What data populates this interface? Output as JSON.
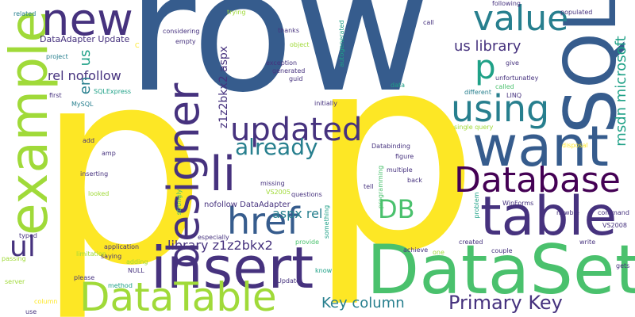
{
  "palette": {
    "yellow": "#fde725",
    "lime": "#a0da39",
    "green": "#4ac16d",
    "teal": "#1fa187",
    "cyan": "#277f8e",
    "blue": "#365c8d",
    "indigo": "#46327e",
    "purple": "#440154"
  },
  "words": [
    {
      "text": "row",
      "color": "blue"
    },
    {
      "text": "p",
      "color": "yellow"
    },
    {
      "text": "p",
      "color": "yellow"
    },
    {
      "text": "SQL",
      "color": "blue"
    },
    {
      "text": "DataSet",
      "color": "green"
    },
    {
      "text": "insert",
      "color": "indigo"
    },
    {
      "text": "example",
      "color": "lime"
    },
    {
      "text": "want",
      "color": "blue"
    },
    {
      "text": "table",
      "color": "indigo"
    },
    {
      "text": "DataTable",
      "color": "lime"
    },
    {
      "text": "designer",
      "color": "indigo"
    },
    {
      "text": "Database",
      "color": "purple"
    },
    {
      "text": "using",
      "color": "cyan"
    },
    {
      "text": "new",
      "color": "indigo"
    },
    {
      "text": "value",
      "color": "cyan"
    },
    {
      "text": "li",
      "color": "indigo"
    },
    {
      "text": "href",
      "color": "blue"
    },
    {
      "text": "updated",
      "color": "indigo"
    },
    {
      "text": "p",
      "color": "teal"
    },
    {
      "text": "already",
      "color": "cyan"
    },
    {
      "text": "DB",
      "color": "green"
    },
    {
      "text": "Primary Key",
      "color": "indigo"
    },
    {
      "text": "Key column",
      "color": "cyan"
    },
    {
      "text": "ul",
      "color": "indigo"
    },
    {
      "text": "us library",
      "color": "indigo"
    },
    {
      "text": "msdn microsoft",
      "color": "teal"
    },
    {
      "text": "rel nofollow",
      "color": "indigo"
    },
    {
      "text": "aspx rel",
      "color": "cyan"
    },
    {
      "text": "library z1z2bkx2",
      "color": "indigo"
    },
    {
      "text": "en",
      "color": "cyan"
    },
    {
      "text": "us",
      "color": "teal"
    },
    {
      "text": "z1z2bkx2 aspx",
      "color": "indigo"
    },
    {
      "text": "DataAdapter Update",
      "color": "indigo"
    },
    {
      "text": "nofollow DataAdapter",
      "color": "indigo"
    },
    {
      "text": "related",
      "color": "cyan"
    },
    {
      "text": "project",
      "color": "cyan"
    },
    {
      "text": "first",
      "color": "indigo"
    },
    {
      "text": "MySQL",
      "color": "cyan"
    },
    {
      "text": "SQLExpress",
      "color": "teal"
    },
    {
      "text": "considering",
      "color": "indigo"
    },
    {
      "text": "empty",
      "color": "indigo"
    },
    {
      "text": "trying",
      "color": "lime"
    },
    {
      "text": "thanks",
      "color": "indigo"
    },
    {
      "text": "object",
      "color": "lime"
    },
    {
      "text": "exception",
      "color": "indigo"
    },
    {
      "text": "generated",
      "color": "indigo"
    },
    {
      "text": "guid",
      "color": "indigo"
    },
    {
      "text": "initially",
      "color": "indigo"
    },
    {
      "text": "autogenerated",
      "color": "teal"
    },
    {
      "text": "call",
      "color": "indigo"
    },
    {
      "text": "called",
      "color": "green"
    },
    {
      "text": "data",
      "color": "teal"
    },
    {
      "text": "following",
      "color": "indigo"
    },
    {
      "text": "populated",
      "color": "indigo"
    },
    {
      "text": "give",
      "color": "indigo"
    },
    {
      "text": "unfortunatley",
      "color": "indigo"
    },
    {
      "text": "different",
      "color": "cyan"
    },
    {
      "text": "LINQ",
      "color": "indigo"
    },
    {
      "text": "single query",
      "color": "lime"
    },
    {
      "text": "disposal",
      "color": "yellow"
    },
    {
      "text": "newbie",
      "color": "indigo"
    },
    {
      "text": "command",
      "color": "indigo"
    },
    {
      "text": "VS2008",
      "color": "indigo"
    },
    {
      "text": "WinForms",
      "color": "indigo"
    },
    {
      "text": "problem",
      "color": "teal"
    },
    {
      "text": "add",
      "color": "indigo"
    },
    {
      "text": "amp",
      "color": "indigo"
    },
    {
      "text": "Databinding",
      "color": "indigo"
    },
    {
      "text": "figure",
      "color": "indigo"
    },
    {
      "text": "multiple",
      "color": "indigo"
    },
    {
      "text": "back",
      "color": "indigo"
    },
    {
      "text": "programming",
      "color": "green"
    },
    {
      "text": "tell",
      "color": "indigo"
    },
    {
      "text": "missing",
      "color": "indigo"
    },
    {
      "text": "inserting",
      "color": "indigo"
    },
    {
      "text": "looked",
      "color": "lime"
    },
    {
      "text": "VS2005",
      "color": "lime"
    },
    {
      "text": "questions",
      "color": "indigo"
    },
    {
      "text": "strongly",
      "color": "green"
    },
    {
      "text": "typed",
      "color": "indigo"
    },
    {
      "text": "application",
      "color": "indigo"
    },
    {
      "text": "especially",
      "color": "indigo"
    },
    {
      "text": "something",
      "color": "teal"
    },
    {
      "text": "limitation",
      "color": "lime"
    },
    {
      "text": "provide",
      "color": "green"
    },
    {
      "text": "created",
      "color": "indigo"
    },
    {
      "text": "write",
      "color": "indigo"
    },
    {
      "text": "saying",
      "color": "indigo"
    },
    {
      "text": "adding",
      "color": "lime"
    },
    {
      "text": "achieve",
      "color": "indigo"
    },
    {
      "text": "one",
      "color": "lime"
    },
    {
      "text": "couple",
      "color": "indigo"
    },
    {
      "text": "gets",
      "color": "indigo"
    },
    {
      "text": "passing",
      "color": "lime"
    },
    {
      "text": "NULL",
      "color": "indigo"
    },
    {
      "text": "know",
      "color": "teal"
    },
    {
      "text": "server",
      "color": "lime"
    },
    {
      "text": "please",
      "color": "indigo"
    },
    {
      "text": "method",
      "color": "teal"
    },
    {
      "text": "Update",
      "color": "indigo"
    },
    {
      "text": "column",
      "color": "yellow"
    },
    {
      "text": "use",
      "color": "indigo"
    },
    {
      "text": "C",
      "color": "yellow"
    }
  ]
}
